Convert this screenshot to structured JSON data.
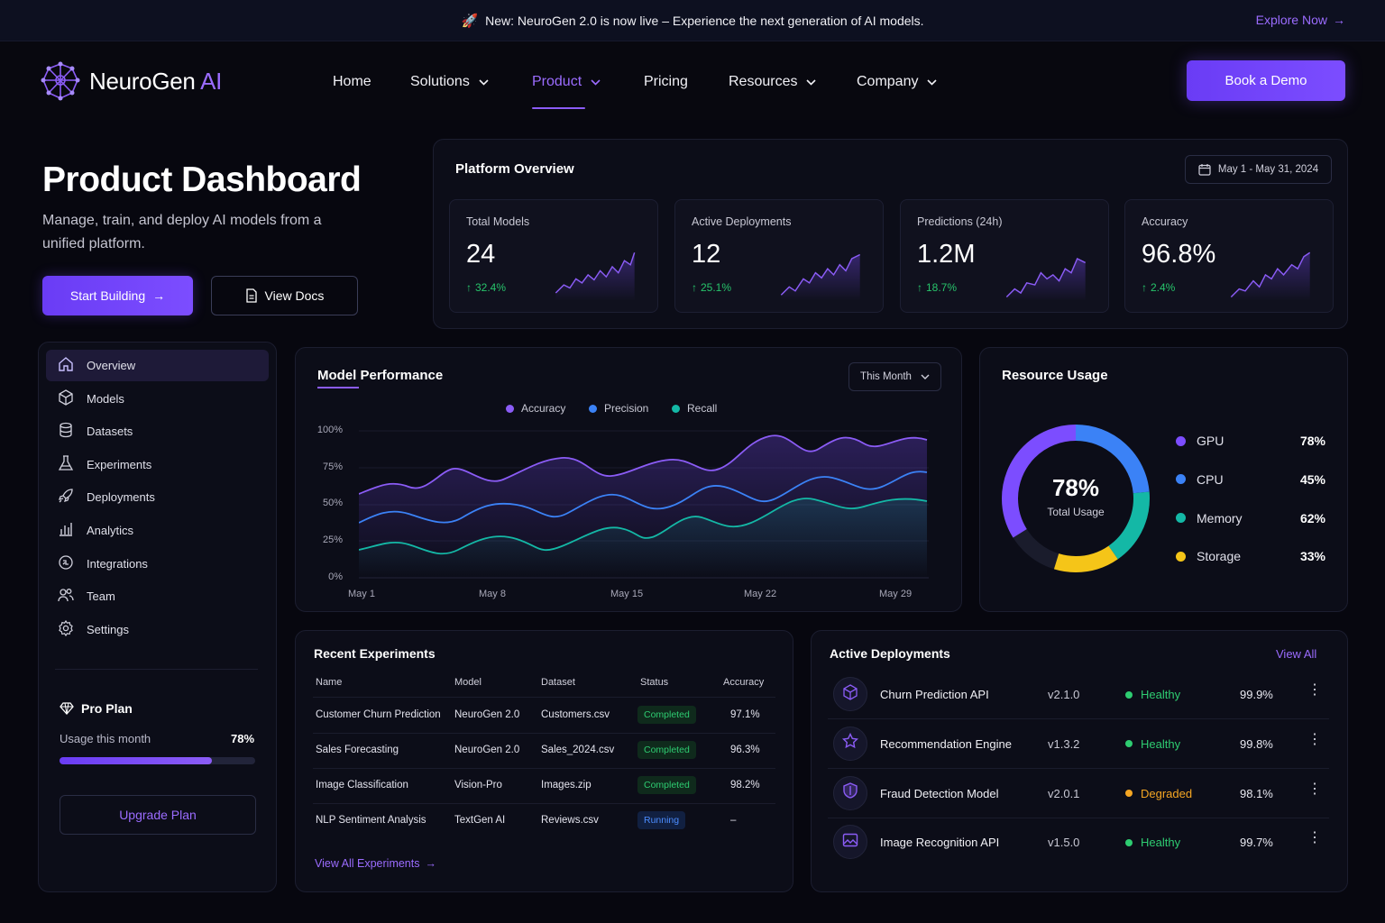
{
  "banner": {
    "text": "New: NeuroGen 2.0 is now live – Experience the next generation of AI models.",
    "cta": "Explore Now"
  },
  "brand": {
    "name": "NeuroGen",
    "suffix": "AI",
    "accent": "#8b5cf6"
  },
  "nav": {
    "items": [
      {
        "label": "Home",
        "dropdown": false
      },
      {
        "label": "Solutions",
        "dropdown": true
      },
      {
        "label": "Product",
        "dropdown": true,
        "active": true
      },
      {
        "label": "Pricing",
        "dropdown": false
      },
      {
        "label": "Resources",
        "dropdown": true
      },
      {
        "label": "Company",
        "dropdown": true
      }
    ],
    "cta": "Book a Demo"
  },
  "hero": {
    "title": "Product Dashboard",
    "subtitle": "Manage, train, and deploy AI models from a unified platform.",
    "primary_cta": "Start Building",
    "secondary_cta": "View Docs"
  },
  "overview": {
    "title": "Platform Overview",
    "date_range": "May 1 - May 31, 2024",
    "stats": [
      {
        "label": "Total Models",
        "value": "24",
        "change": "32.4%"
      },
      {
        "label": "Active Deployments",
        "value": "12",
        "change": "25.1%"
      },
      {
        "label": "Predictions (24h)",
        "value": "1.2M",
        "change": "18.7%"
      },
      {
        "label": "Accuracy",
        "value": "96.8%",
        "change": "2.4%"
      }
    ]
  },
  "sidebar": {
    "items": [
      {
        "label": "Overview",
        "icon": "home-icon",
        "active": true
      },
      {
        "label": "Models",
        "icon": "cube-icon"
      },
      {
        "label": "Datasets",
        "icon": "database-icon"
      },
      {
        "label": "Experiments",
        "icon": "flask-icon"
      },
      {
        "label": "Deployments",
        "icon": "rocket-icon"
      },
      {
        "label": "Analytics",
        "icon": "bar-chart-icon"
      },
      {
        "label": "Integrations",
        "icon": "integrations-icon"
      },
      {
        "label": "Team",
        "icon": "team-icon"
      },
      {
        "label": "Settings",
        "icon": "gear-icon"
      }
    ],
    "plan": {
      "name": "Pro Plan",
      "usage_label": "Usage this month",
      "usage_value": "78%",
      "usage_fraction": 0.78,
      "cta": "Upgrade Plan"
    }
  },
  "performance": {
    "title": "Model Performance",
    "period": "This Month",
    "chart_data": {
      "type": "line",
      "x": [
        "May 1",
        "May 8",
        "May 15",
        "May 22",
        "May 29"
      ],
      "yticks": [
        "100%",
        "75%",
        "50%",
        "25%",
        "0%"
      ],
      "ylim": [
        0,
        100
      ],
      "series": [
        {
          "name": "Accuracy",
          "color": "#8b5cf6"
        },
        {
          "name": "Precision",
          "color": "#3b82f6"
        },
        {
          "name": "Recall",
          "color": "#14b8a6"
        }
      ]
    }
  },
  "resources": {
    "title": "Resource Usage",
    "total": "78%",
    "total_label": "Total Usage",
    "chart_data": {
      "type": "pie",
      "items": [
        {
          "name": "GPU",
          "value": "78%",
          "color": "#7c4dff"
        },
        {
          "name": "CPU",
          "value": "45%",
          "color": "#3b82f6"
        },
        {
          "name": "Memory",
          "value": "62%",
          "color": "#14b8a6"
        },
        {
          "name": "Storage",
          "value": "33%",
          "color": "#f5c518"
        }
      ]
    }
  },
  "experiments": {
    "title": "Recent Experiments",
    "columns": [
      "Name",
      "Model",
      "Dataset",
      "Status",
      "Accuracy"
    ],
    "rows": [
      {
        "name": "Customer Churn Prediction",
        "model": "NeuroGen 2.0",
        "dataset": "Customers.csv",
        "status": "Completed",
        "accuracy": "97.1%"
      },
      {
        "name": "Sales Forecasting",
        "model": "NeuroGen 2.0",
        "dataset": "Sales_2024.csv",
        "status": "Completed",
        "accuracy": "96.3%"
      },
      {
        "name": "Image Classification",
        "model": "Vision-Pro",
        "dataset": "Images.zip",
        "status": "Completed",
        "accuracy": "98.2%"
      },
      {
        "name": "NLP Sentiment Analysis",
        "model": "TextGen AI",
        "dataset": "Reviews.csv",
        "status": "Running",
        "accuracy": "–"
      }
    ],
    "link": "View All Experiments"
  },
  "deployments": {
    "title": "Active Deployments",
    "link": "View All",
    "rows": [
      {
        "name": "Churn Prediction API",
        "version": "v2.1.0",
        "status": "Healthy",
        "status_color": "#2ecc71",
        "uptime": "99.9%",
        "icon": "cube-icon"
      },
      {
        "name": "Recommendation Engine",
        "version": "v1.3.2",
        "status": "Healthy",
        "status_color": "#2ecc71",
        "uptime": "99.8%",
        "icon": "star-icon"
      },
      {
        "name": "Fraud Detection Model",
        "version": "v2.0.1",
        "status": "Degraded",
        "status_color": "#f5a623",
        "uptime": "98.1%",
        "icon": "shield-icon"
      },
      {
        "name": "Image Recognition API",
        "version": "v1.5.0",
        "status": "Healthy",
        "status_color": "#2ecc71",
        "uptime": "99.7%",
        "icon": "image-icon"
      }
    ]
  }
}
